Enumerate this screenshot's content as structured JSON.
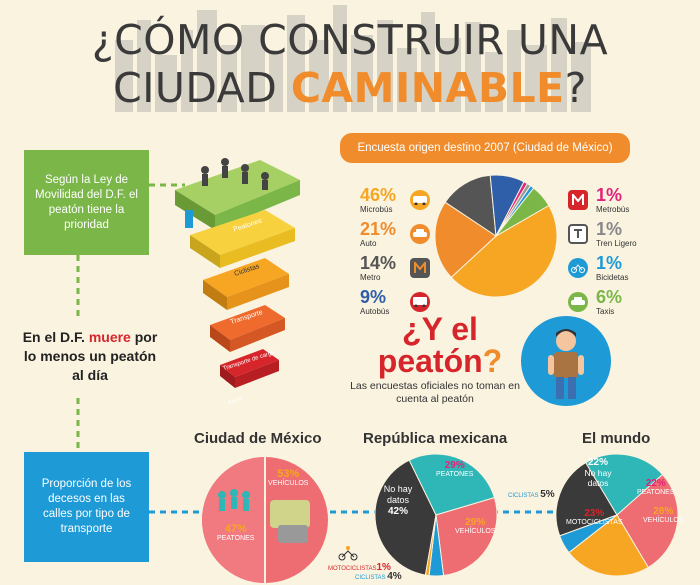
{
  "title": {
    "line1": "¿CÓMO CONSTRUIR UNA",
    "line2_prefix": "CIUDAD ",
    "line2_highlight": "CAMINABLE",
    "line2_suffix": "?"
  },
  "law_box": "Según la Ley de Movilidad del D.F. el peatón tiene la prioridad",
  "death_text": {
    "prefix": "En el D.F. ",
    "highlight": "muere",
    "suffix": " por lo menos un peatón al día"
  },
  "deaths_box": "Proporción de los decesos en las calles por tipo de transporte",
  "pyramid_labels": [
    "Peatones",
    "Ciclistas",
    "Transporte",
    "Transporte de carga",
    "Autos"
  ],
  "survey": {
    "banner": "Encuesta origen destino 2007 (Ciudad de México)",
    "left": [
      {
        "pct": "46%",
        "label": "Microbús",
        "color": "#f6a623",
        "icon": "microbus-icon"
      },
      {
        "pct": "21%",
        "label": "Auto",
        "color": "#f08c2c",
        "icon": "car-icon"
      },
      {
        "pct": "14%",
        "label": "Metro",
        "color": "#555555",
        "icon": "metro-icon"
      },
      {
        "pct": "9%",
        "label": "Autobús",
        "color": "#2f5fa8",
        "icon": "bus-icon"
      }
    ],
    "right": [
      {
        "pct": "1%",
        "label": "Metrobús",
        "color": "#e2237a",
        "icon": "metrobus-icon"
      },
      {
        "pct": "1%",
        "label": "Tren Ligero",
        "color": "#888888",
        "icon": "light-rail-icon"
      },
      {
        "pct": "1%",
        "label": "Bicidetas",
        "color": "#1e9ad6",
        "icon": "bicycle-icon"
      },
      {
        "pct": "6%",
        "label": "Taxis",
        "color": "#7ab648",
        "icon": "taxi-icon"
      }
    ]
  },
  "peaton": {
    "title_a": "¿Y el",
    "title_b": "peatón",
    "title_q": "?",
    "note": "Las encuestas oficiales no toman en cuenta al peatón"
  },
  "sections": {
    "cdmx": {
      "title": "Ciudad de México",
      "a_pct": "53%",
      "a_lbl": "VEHÍCULOS",
      "b_pct": "47%",
      "b_lbl": "PEATONES"
    },
    "rep": {
      "title": "República mexicana",
      "nd": "No hay datos",
      "nd_pct": "42%",
      "p_pct": "29%",
      "p_lbl": "PEATONES",
      "v_pct": "29%",
      "v_lbl": "VEHÍCULOS",
      "moto": "MOTOCICLISTAS",
      "moto_pct": "1%",
      "cic": "CICLISTAS",
      "cic_pct": "4%"
    },
    "mundo": {
      "title": "El mundo",
      "nd": "No hay datos",
      "nd_pct": "22%",
      "p_pct": "22%",
      "p_lbl": "PEATONES",
      "v_pct": "28%",
      "v_lbl": "VEHÍCULOS",
      "moto": "MOTOCICLISTAS",
      "moto_pct": "23%",
      "cic": "CICLISTAS",
      "cic_pct": "5%"
    }
  },
  "chart_data": [
    {
      "type": "pie",
      "title": "Encuesta origen destino 2007 (Ciudad de México)",
      "categories": [
        "Microbús",
        "Auto",
        "Metro",
        "Autobús",
        "Metrobús",
        "Tren Ligero",
        "Bicidetas",
        "Taxis"
      ],
      "values": [
        46,
        21,
        14,
        9,
        1,
        1,
        1,
        6
      ],
      "colors": [
        "#f6a623",
        "#f08c2c",
        "#555555",
        "#2f5fa8",
        "#e2237a",
        "#999999",
        "#1e9ad6",
        "#7ab648"
      ]
    },
    {
      "type": "pie",
      "title": "Ciudad de México",
      "categories": [
        "VEHÍCULOS",
        "PEATONES"
      ],
      "values": [
        53,
        47
      ],
      "colors": [
        "#ee6d72",
        "#ee6d72"
      ]
    },
    {
      "type": "pie",
      "title": "República mexicana",
      "categories": [
        "No hay datos",
        "PEATONES",
        "VEHÍCULOS",
        "CICLISTAS",
        "MOTOCICLISTAS"
      ],
      "values": [
        42,
        29,
        29,
        4,
        1
      ],
      "colors": [
        "#3a3a3a",
        "#2fb6b6",
        "#ee6d72",
        "#1e9ad6",
        "#f6a623"
      ]
    },
    {
      "type": "pie",
      "title": "El mundo",
      "categories": [
        "No hay datos",
        "PEATONES",
        "VEHÍCULOS",
        "MOTOCICLISTAS",
        "CICLISTAS"
      ],
      "values": [
        22,
        22,
        28,
        23,
        5
      ],
      "colors": [
        "#3a3a3a",
        "#2fb6b6",
        "#ee6d72",
        "#f6a623",
        "#1e9ad6"
      ]
    }
  ]
}
